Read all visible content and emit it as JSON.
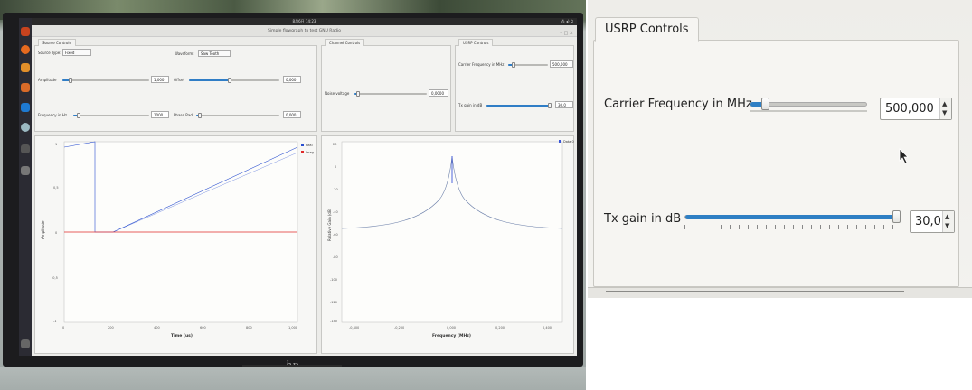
{
  "photo": {
    "topbar_clock": "8月6日 14:23",
    "topbar_icons": "⁂ ◂) ⏻",
    "window_title": "Simple flowgraph to test GNU Radio",
    "window_buttons": "– □ ×",
    "bezel_logo": "hp",
    "source_controls": {
      "tab": "Source Controls",
      "source_type_label": "Source Type:",
      "source_type_value": "Fixed",
      "waveform_label": "Waveform:",
      "waveform_value": "Saw Tooth",
      "amplitude_label": "Amplitude",
      "amplitude_value": "1,000",
      "amplitude_level": 0.08,
      "offset_label": "Offset",
      "offset_value": "0,000",
      "offset_level": 0.45,
      "frequency_label": "Frequency in Hz",
      "frequency_value": "1000",
      "frequency_level": 0.05,
      "phase_label": "Phase Rad",
      "phase_value": "0,000",
      "phase_level": 0.02
    },
    "channel_controls": {
      "tab": "Channel Controls",
      "noise_label": "Noise voltage",
      "noise_value": "0,0000",
      "noise_level": 0.02
    },
    "usrp_controls": {
      "tab": "USRP Controls",
      "carrier_label": "Carrier Frequency in MHz",
      "carrier_value": "500,000",
      "carrier_level": 0.1,
      "txgain_label": "Tx gain in dB",
      "txgain_value": "30,0",
      "txgain_level": 1.0
    },
    "time_plot": {
      "xlabel": "Time (us)",
      "ylabel": "Amplitude",
      "legend": [
        "Real",
        "Imag"
      ],
      "series_colors": [
        "#2a4fd0",
        "#e02a2a"
      ],
      "x_ticks": [
        "0",
        "200",
        "400",
        "600",
        "800",
        "1,000"
      ],
      "y_ticks": [
        "1",
        "0,5",
        "0",
        "-0,5",
        "-1"
      ]
    },
    "freq_plot": {
      "xlabel": "Frequency (MHz)",
      "ylabel": "Relative Gain (dB)",
      "legend": [
        "Data 0"
      ],
      "series_color": "#3a55d8",
      "x_ticks": [
        "-0,400",
        "-0,200",
        "0,000",
        "0,200",
        "0,400"
      ],
      "y_ticks": [
        "20",
        "0",
        "-20",
        "-40",
        "-60",
        "-80",
        "-100",
        "-120",
        "-140"
      ]
    }
  },
  "zoom": {
    "tab": "USRP Controls",
    "carrier_label": "Carrier Frequency in MHz",
    "carrier_value": "500,000",
    "carrier_level": 0.1,
    "txgain_label": "Tx gain in dB",
    "txgain_value": "30,0",
    "txgain_level": 1.0,
    "spin_up": "▲",
    "spin_down": "▼"
  },
  "colors": {
    "accent": "#2e7fc4",
    "real_series": "#2a4fd0",
    "imag_series": "#e02a2a"
  }
}
